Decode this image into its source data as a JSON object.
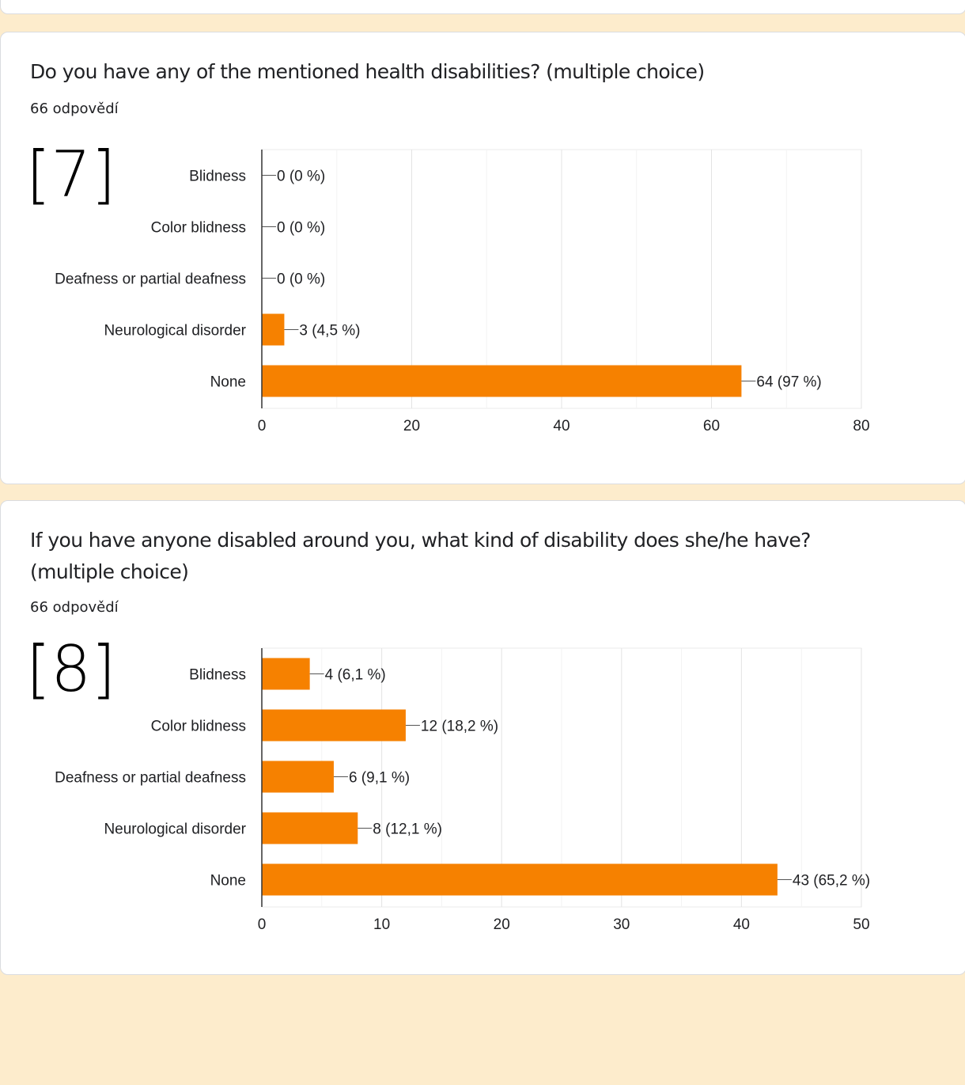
{
  "accent_color": "#f68100",
  "questions": [
    {
      "title": "Do you have any of the mentioned health disabilities? (multiple choice)",
      "responses": "66 odpovědí",
      "figure_label": "[7]"
    },
    {
      "title": "If you have anyone disabled around you, what kind of disability does she/he have? (multiple choice)",
      "responses": "66 odpovědí",
      "figure_label": "[8]"
    }
  ],
  "chart_data": [
    {
      "type": "bar",
      "orientation": "horizontal",
      "categories": [
        "Blidness",
        "Color blidness",
        "Deafness or partial deafness",
        "Neurological disorder",
        "None"
      ],
      "values": [
        0,
        0,
        0,
        3,
        64
      ],
      "data_labels": [
        "0 (0 %)",
        "0 (0 %)",
        "0 (0 %)",
        "3 (4,5 %)",
        "64 (97 %)"
      ],
      "xlim": [
        0,
        80
      ],
      "xticks": [
        0,
        20,
        40,
        60,
        80
      ],
      "grid": true,
      "color": "#f68100"
    },
    {
      "type": "bar",
      "orientation": "horizontal",
      "categories": [
        "Blidness",
        "Color blidness",
        "Deafness or partial deafness",
        "Neurological disorder",
        "None"
      ],
      "values": [
        4,
        12,
        6,
        8,
        43
      ],
      "data_labels": [
        "4 (6,1 %)",
        "12 (18,2 %)",
        "6 (9,1 %)",
        "8 (12,1 %)",
        "43 (65,2 %)"
      ],
      "xlim": [
        0,
        50
      ],
      "xticks": [
        0,
        10,
        20,
        30,
        40,
        50
      ],
      "grid": true,
      "color": "#f68100"
    }
  ]
}
